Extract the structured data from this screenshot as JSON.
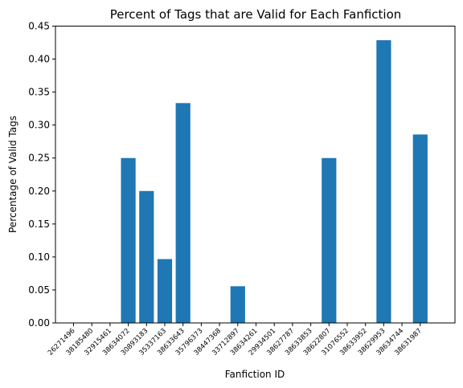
{
  "chart_data": {
    "type": "bar",
    "title": "Percent of Tags that are Valid for Each Fanfiction",
    "xlabel": "Fanfiction ID",
    "ylabel": "Percentage of Valid Tags",
    "categories": [
      "26271496",
      "38185480",
      "32915461",
      "38634072",
      "30893183",
      "35337163",
      "38633643",
      "35796373",
      "38447368",
      "33712897",
      "38634261",
      "29934501",
      "38627787",
      "38633853",
      "38622807",
      "31076552",
      "38633952",
      "38629953",
      "38634744",
      "38631987"
    ],
    "values": [
      0,
      0,
      0,
      0.25,
      0.2,
      0.0968,
      0.3333,
      0,
      0,
      0.0556,
      0,
      0,
      0,
      0,
      0.25,
      0,
      0,
      0.4286,
      0,
      0.2857
    ],
    "ylim": [
      0,
      0.45
    ],
    "yticks": [
      0.0,
      0.05,
      0.1,
      0.15,
      0.2,
      0.25,
      0.3,
      0.35,
      0.4,
      0.45
    ],
    "ytick_labels": [
      "0.00",
      "0.05",
      "0.10",
      "0.15",
      "0.20",
      "0.25",
      "0.30",
      "0.35",
      "0.40",
      "0.45"
    ],
    "bar_color": "#1f77b4",
    "grid": false,
    "legend": "none"
  }
}
